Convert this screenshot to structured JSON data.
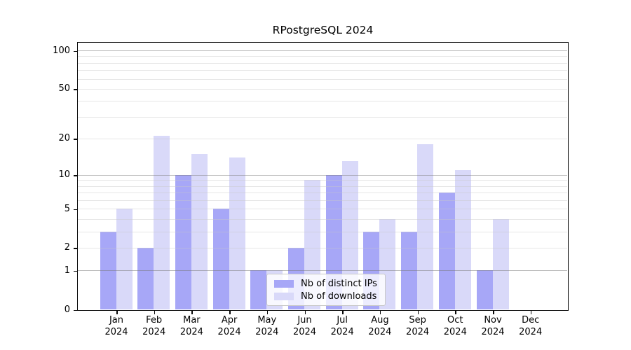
{
  "chart_data": {
    "type": "bar",
    "title": "RPostgreSQL 2024",
    "categories": [
      "Jan",
      "Feb",
      "Mar",
      "Apr",
      "May",
      "Jun",
      "Jul",
      "Aug",
      "Sep",
      "Oct",
      "Nov",
      "Dec"
    ],
    "x_tick_second_line": "2024",
    "series": [
      {
        "name": "Nb of distinct IPs",
        "color": "#a7a7f7",
        "values": [
          3,
          2,
          10,
          5,
          1,
          2,
          10,
          3,
          3,
          7,
          1,
          0
        ]
      },
      {
        "name": "Nb of downloads",
        "color": "#d9d9f9",
        "values": [
          5,
          21,
          15,
          14,
          1,
          9,
          13,
          4,
          18,
          11,
          4,
          0
        ]
      }
    ],
    "y_axis": {
      "scale": "log1p",
      "tick_labels": [
        0,
        1,
        2,
        5,
        10,
        20,
        50,
        100
      ],
      "major_gridlines": [
        1,
        10,
        100
      ],
      "minor_gridlines": [
        2,
        3,
        4,
        5,
        6,
        7,
        8,
        9,
        20,
        30,
        40,
        50,
        60,
        70,
        80,
        90
      ],
      "top_value": 115
    },
    "xlabel": "",
    "ylabel": "",
    "grid": true,
    "legend_position": "bottom-center"
  },
  "colors": {
    "axis": "#0a0a0a",
    "bar_distinct_ips": "#a7a7f7",
    "bar_downloads": "#d9d9f9",
    "legend_border": "#c9c9c9"
  }
}
